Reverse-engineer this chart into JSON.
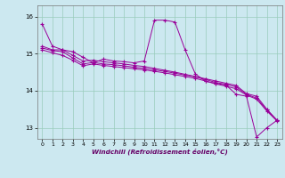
{
  "xlabel": "Windchill (Refroidissement éolien,°C)",
  "background_color": "#cce8f0",
  "grid_color": "#99ccbb",
  "line_color": "#990099",
  "xlim": [
    -0.5,
    23.5
  ],
  "ylim": [
    12.7,
    16.3
  ],
  "yticks": [
    13,
    14,
    15,
    16
  ],
  "xticks": [
    0,
    1,
    2,
    3,
    4,
    5,
    6,
    7,
    8,
    9,
    10,
    11,
    12,
    13,
    14,
    15,
    16,
    17,
    18,
    19,
    20,
    21,
    22,
    23
  ],
  "series": [
    [
      15.8,
      15.2,
      15.1,
      15.05,
      14.9,
      14.75,
      14.85,
      14.8,
      14.78,
      14.75,
      14.8,
      15.9,
      15.9,
      15.85,
      15.1,
      14.45,
      14.25,
      14.2,
      14.15,
      13.9,
      13.85,
      12.75,
      13.0,
      13.2
    ],
    [
      15.2,
      15.1,
      15.1,
      14.95,
      14.8,
      14.82,
      14.78,
      14.75,
      14.72,
      14.68,
      14.65,
      14.6,
      14.55,
      14.5,
      14.44,
      14.38,
      14.32,
      14.26,
      14.2,
      14.14,
      13.92,
      13.85,
      13.5,
      13.2
    ],
    [
      15.15,
      15.08,
      15.05,
      14.88,
      14.72,
      14.76,
      14.72,
      14.7,
      14.67,
      14.63,
      14.6,
      14.56,
      14.52,
      14.47,
      14.42,
      14.37,
      14.3,
      14.22,
      14.17,
      14.1,
      13.9,
      13.8,
      13.48,
      13.2
    ],
    [
      15.1,
      15.02,
      14.95,
      14.82,
      14.67,
      14.72,
      14.68,
      14.65,
      14.62,
      14.59,
      14.56,
      14.52,
      14.48,
      14.43,
      14.38,
      14.33,
      14.26,
      14.18,
      14.12,
      14.05,
      13.88,
      13.77,
      13.45,
      13.18
    ]
  ]
}
